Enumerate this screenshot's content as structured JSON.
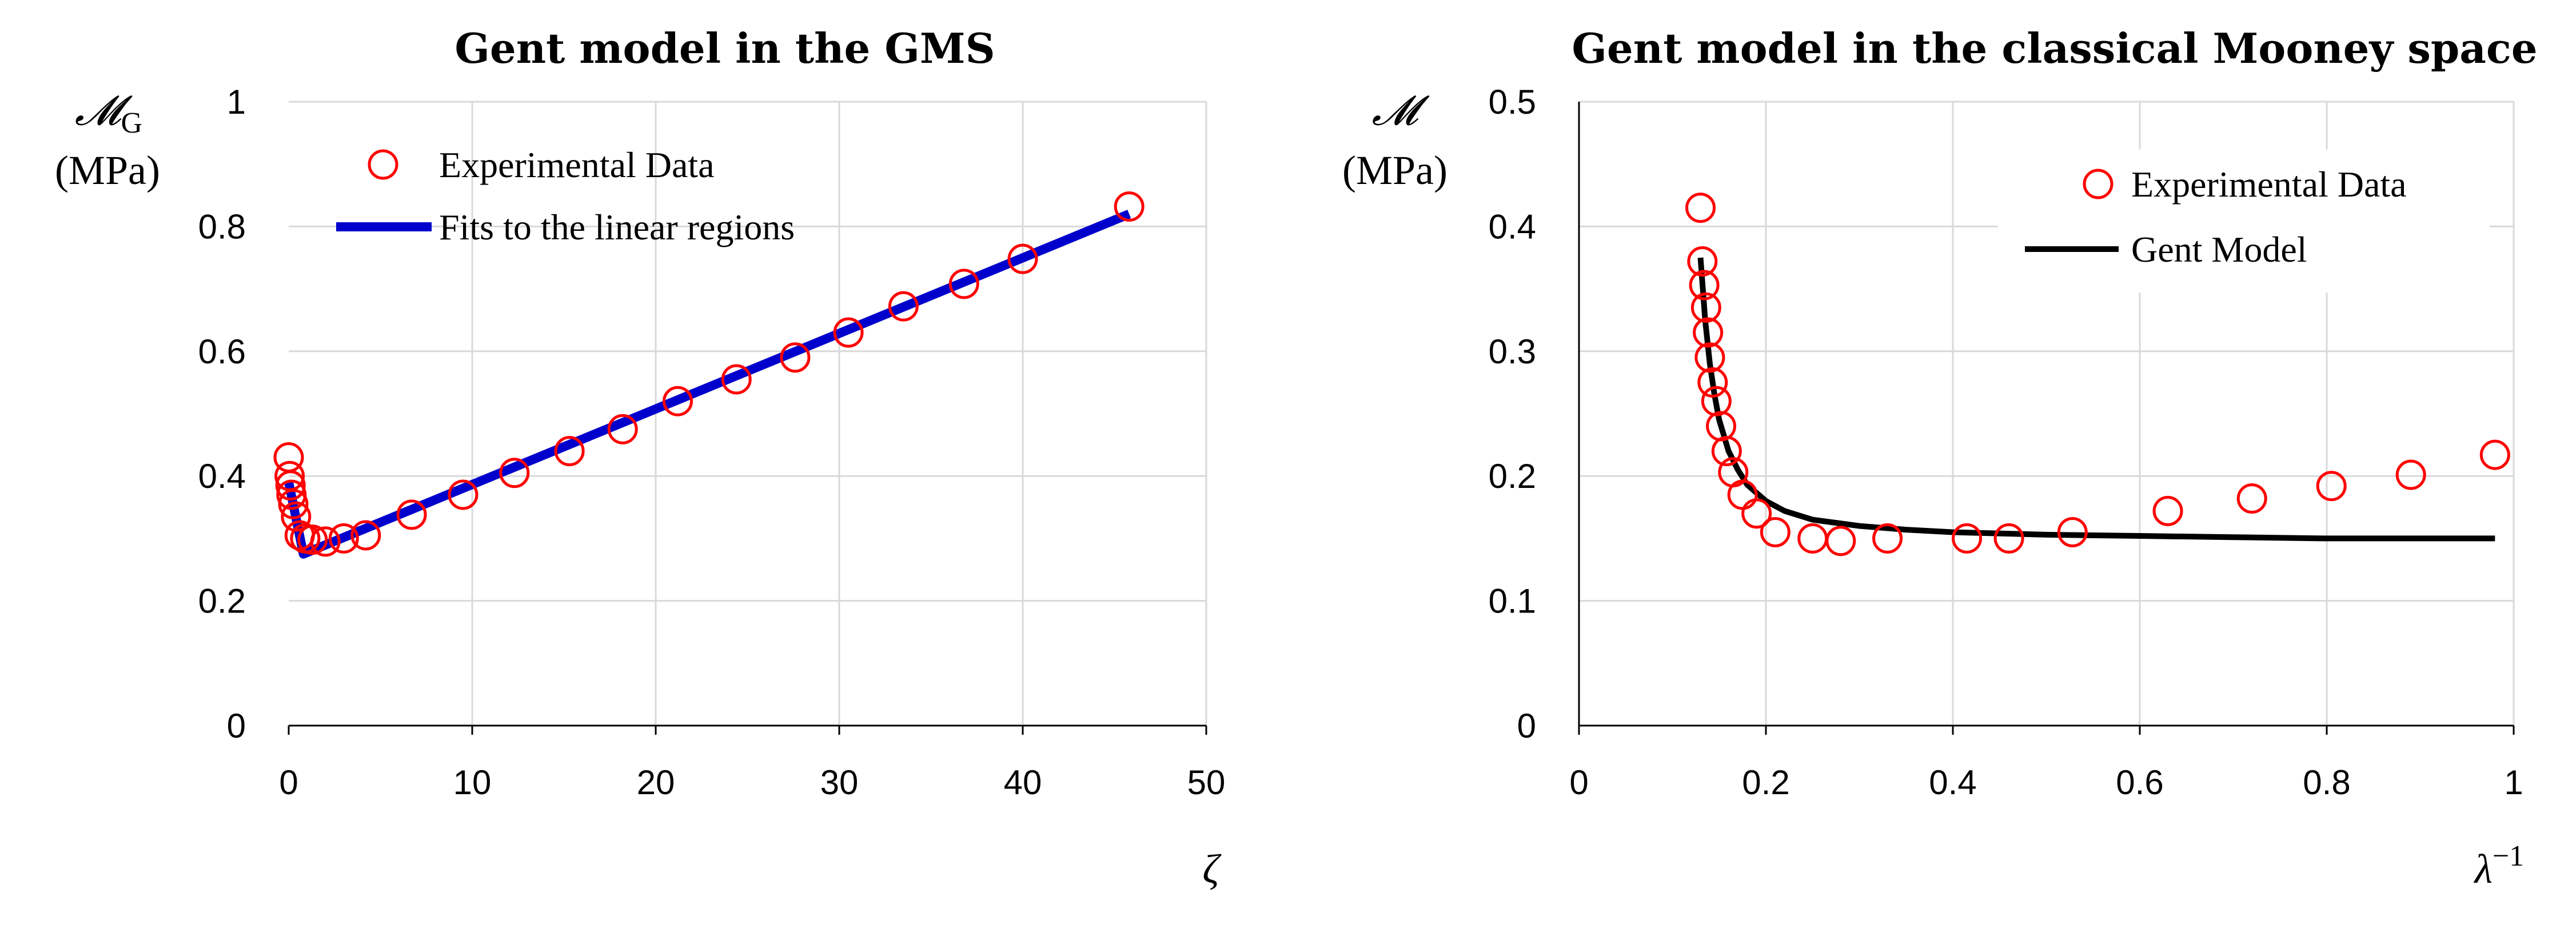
{
  "chart_data": [
    {
      "id": "left",
      "type": "scatter",
      "title": "Gent model in the GMS",
      "ylabel_symbol": "𝓜",
      "ylabel_sub": "G",
      "ylabel_units": "(MPa)",
      "xlabel": "ζ",
      "xlim": [
        0,
        50
      ],
      "ylim": [
        0,
        1
      ],
      "xticks": [
        0,
        10,
        20,
        30,
        40,
        50
      ],
      "yticks": [
        0,
        0.2,
        0.4,
        0.6,
        0.8,
        1
      ],
      "xtick_labels": [
        "0",
        "10",
        "20",
        "30",
        "40",
        "50"
      ],
      "ytick_labels": [
        "0",
        "0.2",
        "0.4",
        "0.6",
        "0.8",
        "1"
      ],
      "legend": [
        "Experimental Data",
        "Fits to the linear regions"
      ],
      "series": [
        {
          "name": "Experimental Data",
          "style": "marker",
          "color": "#ff0000",
          "x": [
            0.0,
            0.05,
            0.1,
            0.15,
            0.25,
            0.4,
            0.6,
            0.9,
            1.3,
            2.0,
            3.0,
            4.2,
            6.7,
            9.5,
            12.3,
            15.3,
            18.2,
            21.2,
            24.4,
            27.6,
            30.5,
            33.5,
            36.8,
            40.0,
            45.8
          ],
          "y": [
            0.43,
            0.4,
            0.385,
            0.37,
            0.355,
            0.335,
            0.305,
            0.3,
            0.298,
            0.295,
            0.3,
            0.305,
            0.338,
            0.37,
            0.405,
            0.44,
            0.475,
            0.52,
            0.555,
            0.59,
            0.63,
            0.672,
            0.708,
            0.748,
            0.832
          ]
        },
        {
          "name": "Fits to the linear regions",
          "style": "line",
          "color": "#0000cc",
          "x": [
            0.0,
            0.8,
            45.8
          ],
          "y": [
            0.39,
            0.275,
            0.82
          ]
        }
      ]
    },
    {
      "id": "right",
      "type": "scatter",
      "title": "Gent model in the classical Mooney space",
      "ylabel_symbol": "𝓜",
      "ylabel_units": "(MPa)",
      "xlabel": "λ",
      "xlabel_sup": "−1",
      "xlim": [
        0,
        1
      ],
      "ylim": [
        0,
        0.5
      ],
      "xticks": [
        0,
        0.2,
        0.4,
        0.6,
        0.8,
        1
      ],
      "yticks": [
        0,
        0.1,
        0.2,
        0.3,
        0.4,
        0.5
      ],
      "xtick_labels": [
        "0",
        "0.2",
        "0.4",
        "0.6",
        "0.8",
        "1"
      ],
      "ytick_labels": [
        "0",
        "0.1",
        "0.2",
        "0.3",
        "0.4",
        "0.5"
      ],
      "legend": [
        "Experimental Data",
        "Gent Model"
      ],
      "series": [
        {
          "name": "Experimental Data",
          "style": "marker",
          "color": "#ff0000",
          "x": [
            0.13,
            0.132,
            0.134,
            0.136,
            0.138,
            0.14,
            0.143,
            0.147,
            0.152,
            0.158,
            0.165,
            0.175,
            0.19,
            0.21,
            0.25,
            0.28,
            0.33,
            0.415,
            0.46,
            0.528,
            0.63,
            0.72,
            0.805,
            0.89,
            0.98
          ],
          "y": [
            0.415,
            0.372,
            0.353,
            0.335,
            0.315,
            0.295,
            0.275,
            0.26,
            0.24,
            0.22,
            0.203,
            0.185,
            0.17,
            0.155,
            0.15,
            0.148,
            0.15,
            0.15,
            0.15,
            0.155,
            0.172,
            0.182,
            0.192,
            0.201,
            0.217
          ]
        },
        {
          "name": "Gent Model",
          "style": "line",
          "color": "#000000",
          "x": [
            0.13,
            0.135,
            0.14,
            0.145,
            0.15,
            0.16,
            0.17,
            0.18,
            0.2,
            0.22,
            0.25,
            0.3,
            0.35,
            0.4,
            0.5,
            0.6,
            0.7,
            0.8,
            0.9,
            0.98
          ],
          "y": [
            0.375,
            0.325,
            0.29,
            0.265,
            0.245,
            0.22,
            0.205,
            0.193,
            0.18,
            0.172,
            0.165,
            0.16,
            0.157,
            0.155,
            0.153,
            0.152,
            0.151,
            0.15,
            0.15,
            0.15
          ]
        }
      ]
    }
  ]
}
